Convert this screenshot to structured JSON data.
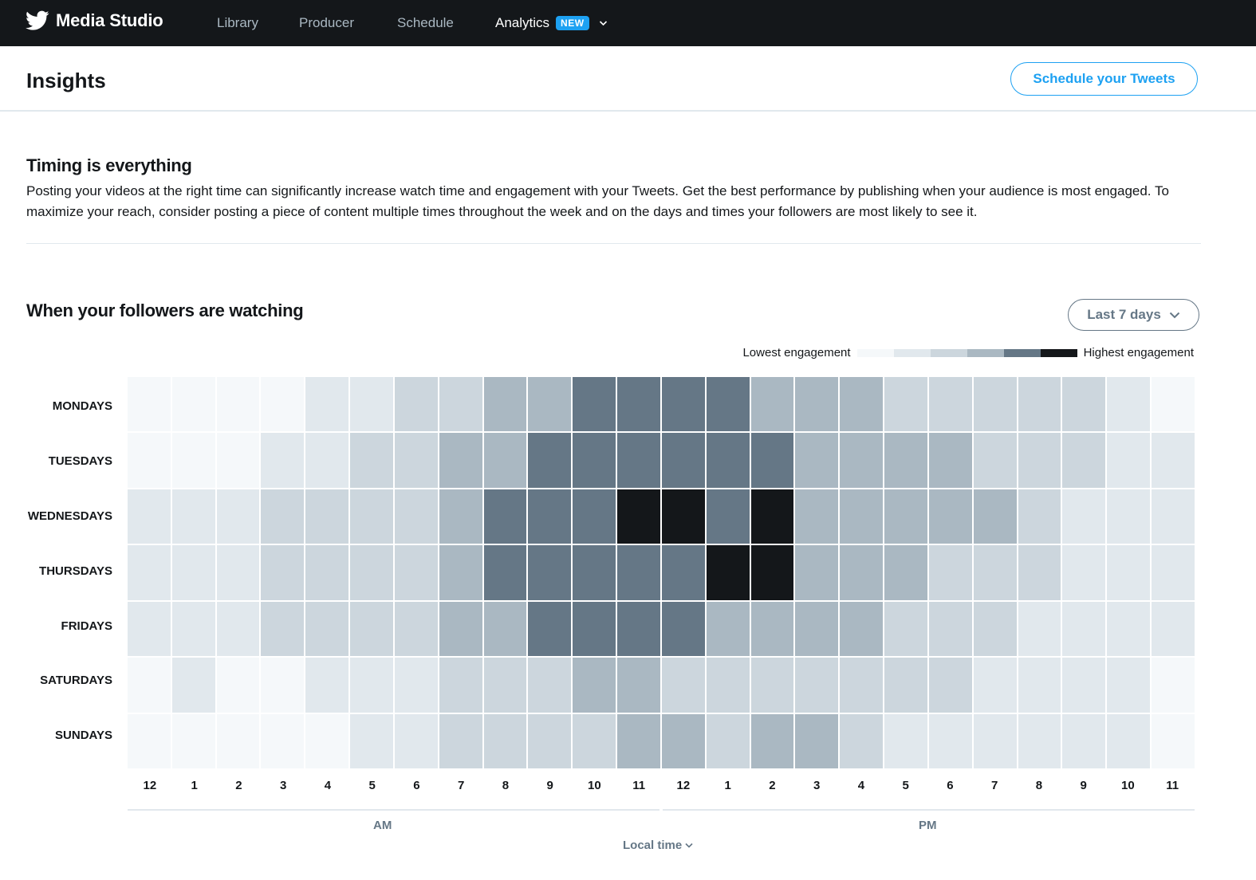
{
  "topnav": {
    "brand": "Media Studio",
    "brand_icon": "twitter-bird-icon",
    "items": [
      {
        "label": "Library"
      },
      {
        "label": "Producer"
      },
      {
        "label": "Schedule"
      },
      {
        "label": "Analytics",
        "badge": "NEW",
        "active": true
      }
    ],
    "chevron_icon": "chevron-down-icon"
  },
  "header": {
    "title": "Insights",
    "schedule_button": "Schedule your Tweets"
  },
  "intro": {
    "title": "Timing is everything",
    "body": "Posting your videos at the right time can significantly increase watch time and engagement with your Tweets. Get the best performance by publishing when your audience is most engaged. To maximize your reach, consider posting a piece of content multiple times throughout the week and on the days and times your followers are most likely to see it."
  },
  "heatmap_section": {
    "title": "When your followers are watching",
    "range_button": "Last 7 days",
    "legend": {
      "low_label": "Lowest engagement",
      "high_label": "Highest engagement"
    },
    "am_label": "AM",
    "pm_label": "PM",
    "timezone_button": "Local time"
  },
  "colors": {
    "accent": "#1da1f2",
    "nav_bg": "#14171a",
    "muted_text": "#657786",
    "levels": [
      "#f5f8fa",
      "#e1e8ed",
      "#ccd6dd",
      "#aab8c2",
      "#657786",
      "#14171a"
    ]
  },
  "chart_data": {
    "type": "heatmap",
    "title": "When your followers are watching",
    "xlabel": "Local time",
    "x": [
      "12",
      "1",
      "2",
      "3",
      "4",
      "5",
      "6",
      "7",
      "8",
      "9",
      "10",
      "11",
      "12",
      "1",
      "2",
      "3",
      "4",
      "5",
      "6",
      "7",
      "8",
      "9",
      "10",
      "11"
    ],
    "x_groups": [
      {
        "label": "AM",
        "range": [
          0,
          11
        ]
      },
      {
        "label": "PM",
        "range": [
          12,
          23
        ]
      }
    ],
    "y": [
      "MONDAYS",
      "TUESDAYS",
      "WEDNESDAYS",
      "THURSDAYS",
      "FRIDAYS",
      "SATURDAYS",
      "SUNDAYS"
    ],
    "scale": {
      "min": 1,
      "max": 6,
      "min_label": "Lowest engagement",
      "max_label": "Highest engagement"
    },
    "values": [
      [
        1,
        1,
        1,
        1,
        2,
        2,
        3,
        3,
        4,
        4,
        5,
        5,
        5,
        5,
        4,
        4,
        4,
        3,
        3,
        3,
        3,
        3,
        2,
        1
      ],
      [
        1,
        1,
        1,
        2,
        2,
        3,
        3,
        4,
        4,
        5,
        5,
        5,
        5,
        5,
        5,
        4,
        4,
        4,
        4,
        3,
        3,
        3,
        2,
        2
      ],
      [
        2,
        2,
        2,
        3,
        3,
        3,
        3,
        4,
        5,
        5,
        5,
        6,
        6,
        5,
        6,
        4,
        4,
        4,
        4,
        4,
        3,
        2,
        2,
        2
      ],
      [
        2,
        2,
        2,
        3,
        3,
        3,
        3,
        4,
        5,
        5,
        5,
        5,
        5,
        6,
        6,
        4,
        4,
        4,
        3,
        3,
        3,
        2,
        2,
        2
      ],
      [
        2,
        2,
        2,
        3,
        3,
        3,
        3,
        4,
        4,
        5,
        5,
        5,
        5,
        4,
        4,
        4,
        4,
        3,
        3,
        3,
        2,
        2,
        2,
        2
      ],
      [
        1,
        2,
        1,
        1,
        2,
        2,
        2,
        3,
        3,
        3,
        4,
        4,
        3,
        3,
        3,
        3,
        3,
        3,
        3,
        2,
        2,
        2,
        2,
        1
      ],
      [
        1,
        1,
        1,
        1,
        1,
        2,
        2,
        3,
        3,
        3,
        3,
        4,
        4,
        3,
        4,
        4,
        3,
        2,
        2,
        2,
        2,
        2,
        2,
        1
      ]
    ]
  }
}
